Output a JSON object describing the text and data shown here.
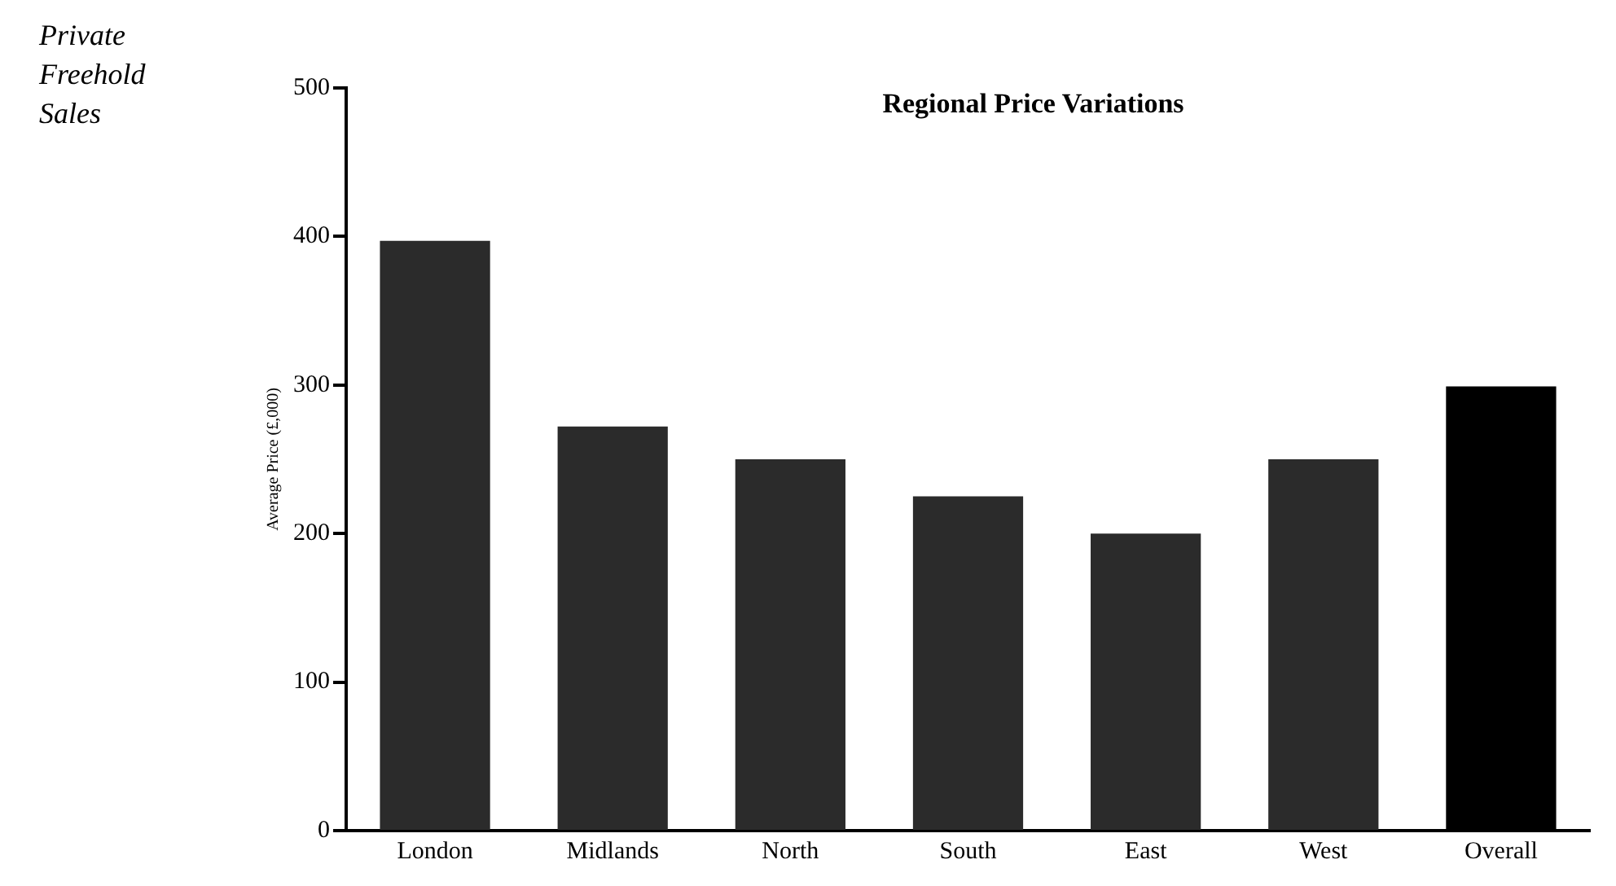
{
  "chart_data": {
    "type": "bar",
    "title": "Regional Price Variations",
    "ylabel": "Average Price (£,000)",
    "annotations": [
      "Private Freehold Sales"
    ],
    "categories": [
      "London",
      "Midlands",
      "North",
      "South",
      "East",
      "West",
      "Overall"
    ],
    "values": [
      397,
      272,
      250,
      225,
      200,
      250,
      299
    ],
    "colors": [
      "#2b2b2b",
      "#2b2b2b",
      "#2b2b2b",
      "#2b2b2b",
      "#2b2b2b",
      "#2b2b2b",
      "#000000"
    ],
    "ylim": [
      0,
      500
    ],
    "yticks": [
      0,
      100,
      200,
      300,
      400,
      500
    ],
    "grid": false,
    "legend": false
  }
}
